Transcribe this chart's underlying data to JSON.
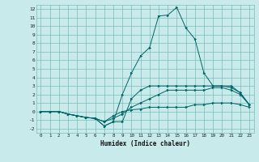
{
  "title": "",
  "xlabel": "Humidex (Indice chaleur)",
  "background_color": "#c8eaea",
  "grid_color": "#7bbcbc",
  "line_color": "#006666",
  "xlim": [
    -0.5,
    23.5
  ],
  "ylim": [
    -2.5,
    12.5
  ],
  "xticks": [
    0,
    1,
    2,
    3,
    4,
    5,
    6,
    7,
    8,
    9,
    10,
    11,
    12,
    13,
    14,
    15,
    16,
    17,
    18,
    19,
    20,
    21,
    22,
    23
  ],
  "yticks": [
    -2,
    -1,
    0,
    1,
    2,
    3,
    4,
    5,
    6,
    7,
    8,
    9,
    10,
    11,
    12
  ],
  "hours": [
    0,
    1,
    2,
    3,
    4,
    5,
    6,
    7,
    8,
    9,
    10,
    11,
    12,
    13,
    14,
    15,
    16,
    17,
    18,
    19,
    20,
    21,
    22,
    23
  ],
  "line1": [
    0,
    0,
    0,
    -0.3,
    -0.5,
    -0.7,
    -0.8,
    -1.7,
    -1.2,
    2.0,
    4.5,
    6.5,
    7.5,
    11.2,
    11.3,
    12.2,
    9.8,
    8.5,
    4.5,
    3.0,
    3.0,
    3.0,
    2.2,
    0.8
  ],
  "line2": [
    0,
    0,
    0,
    -0.3,
    -0.5,
    -0.7,
    -0.8,
    -1.7,
    -1.2,
    -1.2,
    1.5,
    2.5,
    3.0,
    3.0,
    3.0,
    3.0,
    3.0,
    3.0,
    3.0,
    3.0,
    3.0,
    2.8,
    2.2,
    0.8
  ],
  "line3": [
    0,
    0,
    0,
    -0.3,
    -0.5,
    -0.7,
    -0.8,
    -1.2,
    -0.8,
    -0.3,
    0.5,
    1.0,
    1.5,
    2.0,
    2.5,
    2.5,
    2.5,
    2.5,
    2.5,
    2.8,
    2.8,
    2.5,
    2.0,
    0.8
  ],
  "line4": [
    0,
    0,
    0,
    -0.3,
    -0.5,
    -0.7,
    -0.8,
    -1.2,
    -0.5,
    0.0,
    0.2,
    0.3,
    0.5,
    0.5,
    0.5,
    0.5,
    0.5,
    0.8,
    0.8,
    1.0,
    1.0,
    1.0,
    0.8,
    0.5
  ],
  "figsize": [
    3.2,
    2.0
  ],
  "dpi": 100
}
